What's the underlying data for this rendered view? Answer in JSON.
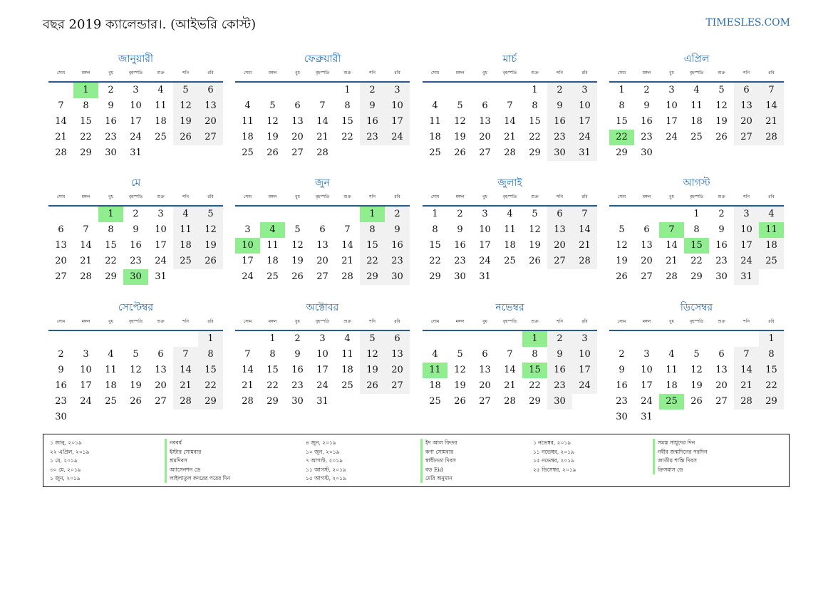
{
  "title": "বছর 2019 ক্যালেন্ডার।. (আইভরি কোস্ট)",
  "site": "TIMESLES.COM",
  "day_names": [
    "সোম",
    "মঙ্গল",
    "বুধ",
    "বৃহস্পতি",
    "শুক্র",
    "শনি",
    "রবি"
  ],
  "colors": {
    "accent": "#2a6fb0",
    "header_rule": "#2b5a8a",
    "weekend_bg": "#f1f1f1",
    "holiday_bg": "#90ee90"
  },
  "months": [
    {
      "name": "জানুয়ারী",
      "offset": 1,
      "days": 31,
      "holidays": [
        1
      ]
    },
    {
      "name": "ফেব্রুয়ারী",
      "offset": 4,
      "days": 28,
      "holidays": []
    },
    {
      "name": "মার্চ",
      "offset": 4,
      "days": 31,
      "holidays": []
    },
    {
      "name": "এপ্রিল",
      "offset": 0,
      "days": 30,
      "holidays": [
        22
      ]
    },
    {
      "name": "মে",
      "offset": 2,
      "days": 31,
      "holidays": [
        1,
        30
      ]
    },
    {
      "name": "জুন",
      "offset": 5,
      "days": 30,
      "holidays": [
        1,
        4,
        10
      ]
    },
    {
      "name": "জুলাই",
      "offset": 0,
      "days": 31,
      "holidays": []
    },
    {
      "name": "আগস্ট",
      "offset": 3,
      "days": 31,
      "holidays": [
        7,
        11,
        15
      ]
    },
    {
      "name": "সেপ্টেম্বর",
      "offset": 6,
      "days": 30,
      "holidays": []
    },
    {
      "name": "অক্টোবর",
      "offset": 1,
      "days": 31,
      "holidays": []
    },
    {
      "name": "নভেম্বর",
      "offset": 4,
      "days": 30,
      "holidays": [
        1,
        11,
        15
      ]
    },
    {
      "name": "ডিসেম্বর",
      "offset": 6,
      "days": 31,
      "holidays": [
        25
      ]
    }
  ],
  "holidays_list": {
    "col1_dates": [
      "১ জানু, ২০১৯",
      "২২ এপ্রিল, ২০১৯",
      "১ মে, ২০১৯",
      "৩০ মে, ২০১৯",
      "১ জুন, ২০১৯"
    ],
    "col1_names": [
      "নববর্ষ",
      "ইস্টার সোমবার",
      "শ্রমদিবস",
      "অ্যাসেনশন ডে",
      "লাইলাতুল কদরের পরের দিন"
    ],
    "col2_dates": [
      "৪ জুন, ২০১৯",
      "১০ জুন, ২০১৯",
      "৭ আগস্ট, ২০১৯",
      "১১ আগস্ট, ২০১৯",
      "১৫ আগস্ট, ২০১৯"
    ],
    "col2_names": [
      "ইদ আল ফিতর",
      "কণা সোমবার",
      "স্বাধীনতা দিবস",
      "বড় Eid",
      "মেরি অনুমান"
    ],
    "col3_dates": [
      "১ নভেম্বর, ২০১৯",
      "১১ নভেম্বর, ২০১৯",
      "১৫ নভেম্বর, ২০১৯",
      "২৫ ডিসেম্বর, ২০১৯"
    ],
    "col3_names": [
      "সমস্ত সাধুদের দিন",
      "নবীর জন্মদিনের পরদিন",
      "জাতীয় শান্তি দিবস",
      "ক্রিসমাস ডে"
    ]
  }
}
